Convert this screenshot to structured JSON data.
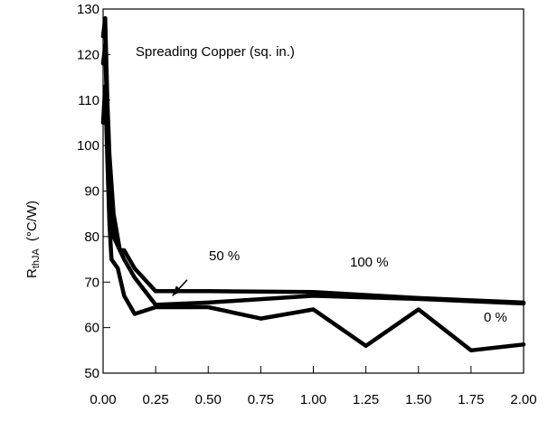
{
  "chart_data": {
    "type": "line",
    "ylabel_main": "R",
    "ylabel_sub": "thJA",
    "ylabel_unit": "(°C/W)",
    "xlim": [
      0,
      2
    ],
    "ylim": [
      50,
      130
    ],
    "x_ticks": [
      "0.00",
      "0.25",
      "0.50",
      "0.75",
      "1.00",
      "1.25",
      "1.50",
      "1.75",
      "2.00"
    ],
    "y_ticks": [
      "50",
      "60",
      "70",
      "80",
      "90",
      "100",
      "110",
      "120",
      "130"
    ],
    "grid": false,
    "annotations": {
      "legend_title": "Spreading Copper (sq. in.)",
      "label_50": "50 %",
      "label_100": "100 %",
      "label_0": "0 %"
    },
    "series": [
      {
        "points": [
          [
            0.0,
            124
          ],
          [
            0.01,
            128
          ],
          [
            0.02,
            110
          ],
          [
            0.03,
            98
          ],
          [
            0.05,
            85
          ],
          [
            0.08,
            77
          ],
          [
            0.1,
            77
          ],
          [
            0.15,
            73
          ],
          [
            0.25,
            68
          ],
          [
            0.5,
            68
          ],
          [
            1.0,
            67.8
          ],
          [
            1.5,
            66.5
          ],
          [
            2.0,
            65.5
          ]
        ]
      },
      {
        "points": [
          [
            0.0,
            118
          ],
          [
            0.01,
            122
          ],
          [
            0.02,
            105
          ],
          [
            0.03,
            92
          ],
          [
            0.05,
            80
          ],
          [
            0.08,
            77
          ],
          [
            0.1,
            75
          ],
          [
            0.15,
            71
          ],
          [
            0.25,
            65
          ],
          [
            0.5,
            65.5
          ],
          [
            1.0,
            67
          ],
          [
            1.5,
            66.3
          ],
          [
            2.0,
            65.3
          ]
        ]
      },
      {
        "points": [
          [
            0.0,
            105
          ],
          [
            0.01,
            113
          ],
          [
            0.02,
            97
          ],
          [
            0.03,
            83
          ],
          [
            0.04,
            75
          ],
          [
            0.07,
            73
          ],
          [
            0.1,
            67
          ],
          [
            0.15,
            63
          ],
          [
            0.25,
            64.5
          ],
          [
            0.5,
            64.5
          ],
          [
            0.75,
            62
          ],
          [
            1.0,
            64
          ],
          [
            1.25,
            56
          ],
          [
            1.5,
            64
          ],
          [
            1.75,
            55
          ],
          [
            2.0,
            56.3
          ]
        ]
      }
    ],
    "arrow": {
      "from": [
        0.4,
        70.5
      ],
      "to": [
        0.33,
        67
      ]
    }
  }
}
